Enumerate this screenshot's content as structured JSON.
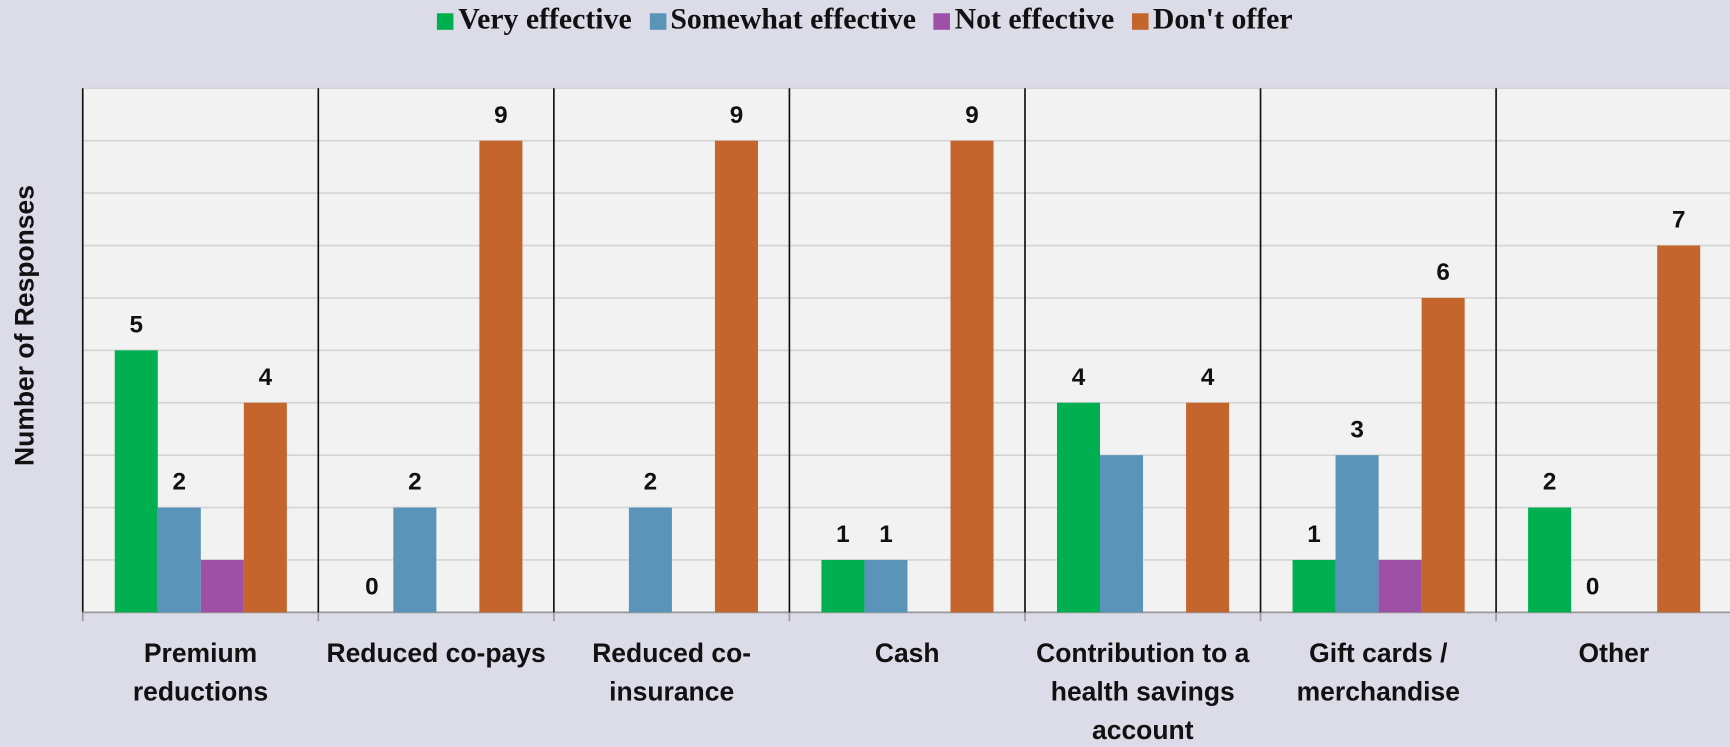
{
  "chart_data": {
    "type": "bar",
    "y_label": "Number of Responses",
    "categories": [
      "Premium reductions",
      "Reduced co-pays",
      "Reduced co-insurance",
      "Cash",
      "Contribution to a health savings account",
      "Gift cards / merchandise",
      "Other"
    ],
    "series": [
      {
        "name": "Very effective",
        "color": "#00b050",
        "values": [
          5,
          0,
          null,
          1,
          4,
          1,
          2
        ],
        "value_labels": [
          "5",
          "0",
          null,
          "1",
          "4",
          "1",
          "2"
        ]
      },
      {
        "name": "Somewhat effective",
        "color": "#5b94b9",
        "values": [
          2,
          2,
          2,
          1,
          3,
          3,
          0
        ],
        "value_labels": [
          "2",
          "2",
          "2",
          "1",
          null,
          "3",
          "0"
        ]
      },
      {
        "name": "Not effective",
        "color": "#9e4fa6",
        "values": [
          1,
          null,
          null,
          null,
          null,
          1,
          null
        ],
        "value_labels": [
          null,
          null,
          null,
          null,
          null,
          null,
          null
        ]
      },
      {
        "name": "Don't offer",
        "color": "#c5652e",
        "values": [
          4,
          9,
          9,
          9,
          4,
          6,
          7
        ],
        "value_labels": [
          "4",
          "9",
          "9",
          "9",
          "4",
          "6",
          "7"
        ]
      }
    ],
    "ylim": [
      0,
      10
    ],
    "yticks": [
      0,
      1,
      2,
      3,
      4,
      5,
      6,
      7,
      8,
      9,
      10
    ],
    "grid": true,
    "legend": "top"
  }
}
